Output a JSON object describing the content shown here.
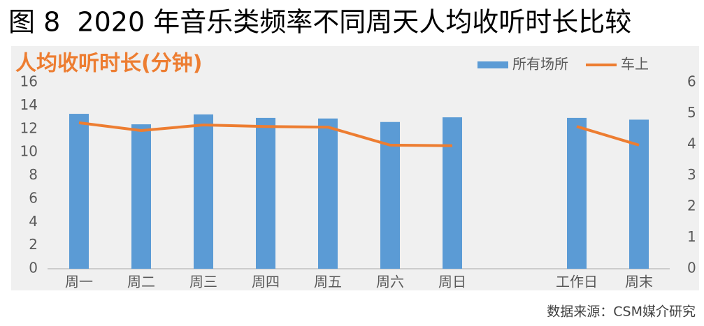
{
  "chart_data": {
    "type": "bar",
    "title": "图 8  2020 年音乐类频率不同周天人均收听时长比较",
    "subtitle": "人均收听时长(分钟)",
    "source": "数据来源：CSM媒介研究",
    "categories": [
      "周一",
      "周二",
      "周三",
      "周四",
      "周五",
      "周六",
      "周日",
      null,
      "工作日",
      "周末"
    ],
    "series": [
      {
        "name": "所有场所",
        "type": "bar",
        "color": "#5b9bd5",
        "values": [
          13.3,
          12.4,
          13.25,
          12.95,
          12.9,
          12.6,
          13.0,
          null,
          12.95,
          12.8
        ]
      },
      {
        "name": "车上",
        "type": "line",
        "axis": "y2",
        "color": "#ed7d31",
        "values": [
          4.7,
          4.45,
          4.63,
          4.58,
          4.56,
          3.98,
          3.96,
          null,
          4.58,
          3.98
        ]
      }
    ],
    "ylim": [
      0,
      16
    ],
    "yticks": [
      0,
      2,
      4,
      6,
      8,
      10,
      12,
      14,
      16
    ],
    "y2lim": [
      0,
      6
    ],
    "y2ticks": [
      0,
      1,
      2,
      3,
      4,
      5,
      6
    ],
    "grid": false,
    "legend": "top-right"
  }
}
